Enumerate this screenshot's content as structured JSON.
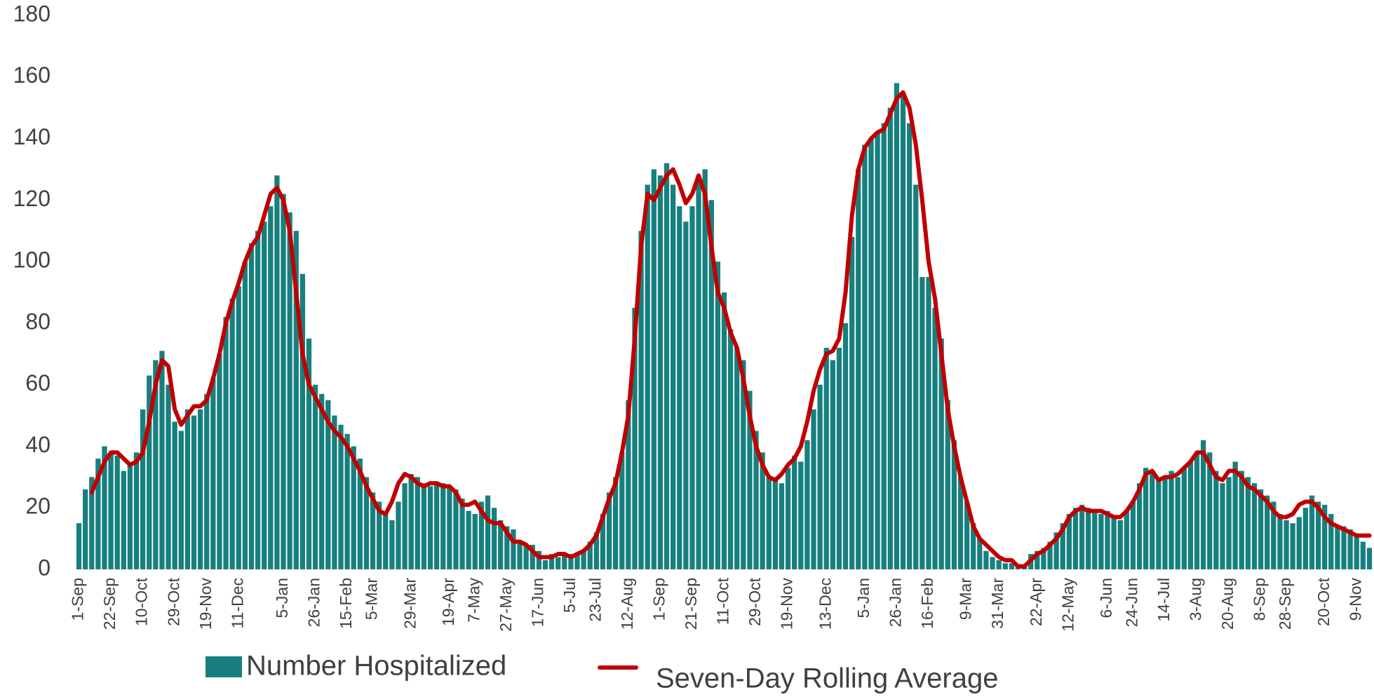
{
  "chart_data": {
    "type": "bar",
    "categories": [
      "1-Sep",
      null,
      null,
      null,
      null,
      "22-Sep",
      null,
      null,
      null,
      null,
      "10-Oct",
      null,
      null,
      null,
      null,
      "29-Oct",
      null,
      null,
      null,
      null,
      "19-Nov",
      null,
      null,
      null,
      null,
      "11-Dec",
      null,
      null,
      null,
      null,
      null,
      null,
      "5-Jan",
      null,
      null,
      null,
      null,
      "26-Jan",
      null,
      null,
      null,
      null,
      "15-Feb",
      null,
      null,
      null,
      "5-Mar",
      null,
      null,
      null,
      null,
      null,
      "29-Mar",
      null,
      null,
      null,
      null,
      null,
      "19-Apr",
      null,
      null,
      null,
      "7-May",
      null,
      null,
      null,
      null,
      "27-May",
      null,
      null,
      null,
      null,
      "17-Jun",
      null,
      null,
      null,
      null,
      "5-Jul",
      null,
      null,
      null,
      "23-Jul",
      null,
      null,
      null,
      null,
      "12-Aug",
      null,
      null,
      null,
      null,
      "1-Sep",
      null,
      null,
      null,
      null,
      "21-Sep",
      null,
      null,
      null,
      null,
      "11-Oct",
      null,
      null,
      null,
      null,
      "29-Oct",
      null,
      null,
      null,
      null,
      "19-Nov",
      null,
      null,
      null,
      null,
      null,
      "13-Dec",
      null,
      null,
      null,
      null,
      null,
      "5-Jan",
      null,
      null,
      null,
      null,
      "26-Jan",
      null,
      null,
      null,
      null,
      "16-Feb",
      null,
      null,
      null,
      null,
      null,
      "9-Mar",
      null,
      null,
      null,
      null,
      "31-Mar",
      null,
      null,
      null,
      null,
      null,
      "22-Apr",
      null,
      null,
      null,
      null,
      "12-May",
      null,
      null,
      null,
      null,
      null,
      "6-Jun",
      null,
      null,
      null,
      "24-Jun",
      null,
      null,
      null,
      null,
      "14-Jul",
      null,
      null,
      null,
      null,
      "3-Aug",
      null,
      null,
      null,
      null,
      "20-Aug",
      null,
      null,
      null,
      null,
      "8-Sep",
      null,
      null,
      null,
      "28-Sep",
      null,
      null,
      null,
      null,
      null,
      "20-Oct",
      null,
      null,
      null,
      null,
      "9-Nov",
      null,
      null
    ],
    "series": [
      {
        "name": "Number Hospitalized",
        "type": "bar",
        "color": "#17807e",
        "values": [
          15,
          26,
          30,
          36,
          40,
          38,
          37,
          32,
          34,
          38,
          52,
          63,
          68,
          71,
          60,
          48,
          45,
          52,
          50,
          52,
          57,
          62,
          70,
          82,
          88,
          92,
          100,
          106,
          110,
          113,
          118,
          128,
          122,
          116,
          110,
          96,
          75,
          60,
          57,
          55,
          50,
          47,
          44,
          40,
          36,
          30,
          25,
          22,
          18,
          16,
          22,
          28,
          31,
          30,
          28,
          27,
          28,
          28,
          27,
          26,
          23,
          19,
          18,
          22,
          24,
          20,
          16,
          14,
          13,
          9,
          8,
          8,
          6,
          3,
          5,
          4,
          5,
          5,
          5,
          6,
          9,
          12,
          18,
          25,
          30,
          38,
          55,
          85,
          110,
          125,
          130,
          128,
          132,
          125,
          118,
          113,
          118,
          128,
          130,
          120,
          100,
          90,
          78,
          72,
          68,
          58,
          45,
          38,
          30,
          30,
          28,
          33,
          37,
          35,
          42,
          52,
          60,
          72,
          68,
          72,
          80,
          108,
          130,
          138,
          140,
          142,
          145,
          150,
          158,
          155,
          145,
          125,
          95,
          95,
          85,
          75,
          55,
          42,
          30,
          22,
          15,
          10,
          6,
          4,
          3,
          2,
          2,
          1,
          1,
          5,
          6,
          7,
          9,
          12,
          15,
          18,
          20,
          21,
          20,
          19,
          18,
          19,
          17,
          16,
          19,
          22,
          28,
          33,
          32,
          29,
          30,
          32,
          30,
          33,
          35,
          38,
          42,
          38,
          32,
          28,
          30,
          35,
          32,
          30,
          28,
          26,
          24,
          22,
          18,
          16,
          15,
          17,
          20,
          24,
          22,
          21,
          18,
          14,
          14,
          13,
          11,
          9,
          7
        ]
      },
      {
        "name": "Seven-Day Rolling Average",
        "type": "line",
        "color": "#c00000",
        "values": [
          null,
          null,
          25,
          30,
          35,
          38,
          38,
          36,
          34,
          35,
          38,
          48,
          60,
          68,
          66,
          52,
          47,
          50,
          53,
          53,
          55,
          62,
          70,
          80,
          87,
          93,
          100,
          105,
          108,
          115,
          122,
          124,
          120,
          110,
          90,
          70,
          60,
          56,
          52,
          48,
          45,
          43,
          40,
          36,
          32,
          27,
          23,
          19,
          18,
          22,
          28,
          31,
          30,
          28,
          27,
          28,
          28,
          27,
          27,
          25,
          21,
          21,
          22,
          19,
          16,
          15,
          15,
          12,
          9,
          9,
          8,
          6,
          4,
          4,
          4,
          5,
          5,
          4,
          5,
          6,
          8,
          11,
          17,
          23,
          28,
          38,
          50,
          75,
          105,
          122,
          120,
          124,
          128,
          130,
          125,
          119,
          122,
          128,
          122,
          105,
          90,
          85,
          77,
          72,
          62,
          50,
          40,
          34,
          30,
          29,
          31,
          34,
          36,
          40,
          48,
          58,
          65,
          70,
          71,
          75,
          90,
          115,
          130,
          137,
          140,
          142,
          143,
          148,
          153,
          155,
          150,
          138,
          120,
          100,
          88,
          70,
          52,
          40,
          30,
          22,
          14,
          10,
          8,
          6,
          4,
          3,
          3,
          1,
          1,
          3,
          5,
          6,
          8,
          10,
          13,
          17,
          19,
          20,
          19,
          19,
          19,
          18,
          17,
          17,
          19,
          22,
          26,
          31,
          32,
          29,
          30,
          30,
          31,
          33,
          35,
          38,
          38,
          34,
          30,
          29,
          32,
          32,
          30,
          27,
          26,
          24,
          22,
          19,
          17,
          17,
          18,
          21,
          22,
          22,
          20,
          17,
          15,
          14,
          13,
          12,
          11,
          11,
          11
        ]
      }
    ],
    "ylim": [
      0,
      180
    ],
    "yticks": [
      0,
      20,
      40,
      60,
      80,
      100,
      120,
      140,
      160,
      180
    ],
    "grid": false
  }
}
